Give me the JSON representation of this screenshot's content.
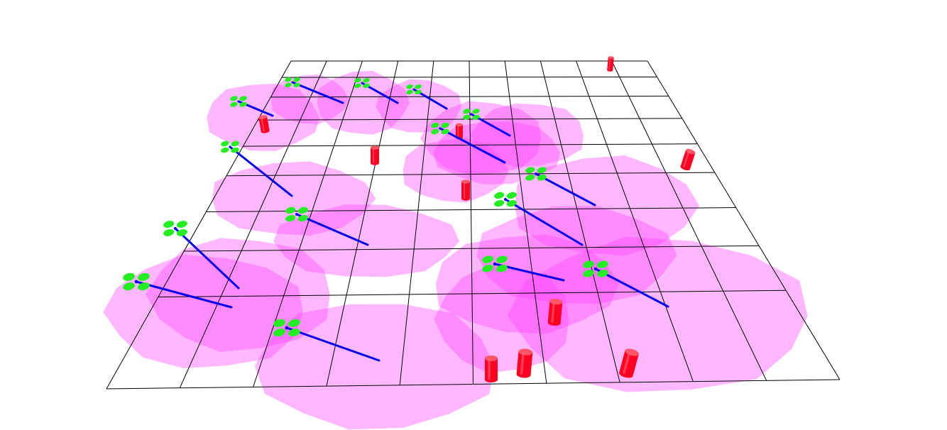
{
  "scene": {
    "background_color": "#ffffff",
    "grid_color": "#000000",
    "coverage_color": "#ff44ff",
    "coverage_opacity": 0.38,
    "drone_rotor_color": "#22ee22",
    "drone_tether_color": "#0000ee",
    "obstacle_color": "#ff0022",
    "grid_rows": 9,
    "grid_cols": 10,
    "drone_icon": "quadcopter-icon",
    "obstacle_icon": "cylinder-icon"
  }
}
